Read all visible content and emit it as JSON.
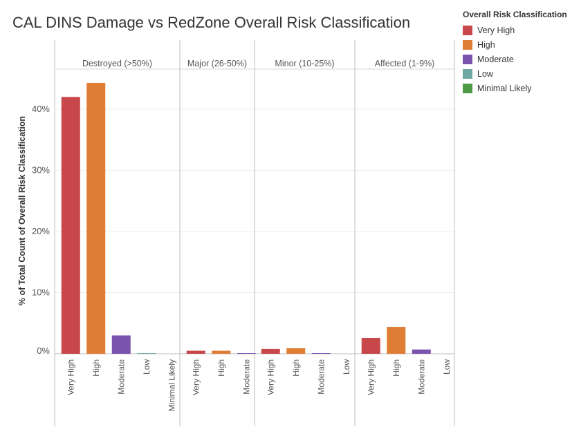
{
  "colors": {
    "Very High": "#c8474a",
    "High": "#e07d35",
    "Moderate": "#7b52ad",
    "Low": "#6fa8a3",
    "Minimal Likely": "#4e9a45"
  },
  "chart_data": {
    "type": "bar",
    "title": "CAL DINS Damage vs RedZone Overall Risk Classification",
    "ylabel": "% of Total Count of Overall Risk Classification",
    "ylim": [
      0,
      50
    ],
    "yticks": [
      "0%",
      "10%",
      "20%",
      "30%",
      "40%"
    ],
    "legend": {
      "title": "Overall Risk Classification",
      "placement": "right",
      "entries": [
        "Very High",
        "High",
        "Moderate",
        "Low",
        "Minimal Likely"
      ]
    },
    "panels": [
      {
        "label": "Destroyed (>50%)",
        "categories": [
          "Very High",
          "High",
          "Moderate",
          "Low",
          "Minimal Likely"
        ],
        "values": [
          42.0,
          44.3,
          3.0,
          0.1,
          0.0
        ]
      },
      {
        "label": "Major (26-50%)",
        "categories": [
          "Very High",
          "High",
          "Moderate"
        ],
        "values": [
          0.5,
          0.5,
          0.1
        ]
      },
      {
        "label": "Minor (10-25%)",
        "categories": [
          "Very High",
          "High",
          "Moderate",
          "Low"
        ],
        "values": [
          0.8,
          0.9,
          0.1,
          0.0
        ]
      },
      {
        "label": "Affected (1-9%)",
        "categories": [
          "Very High",
          "High",
          "Moderate",
          "Low"
        ],
        "values": [
          2.6,
          4.4,
          0.7,
          0.0
        ]
      }
    ]
  }
}
